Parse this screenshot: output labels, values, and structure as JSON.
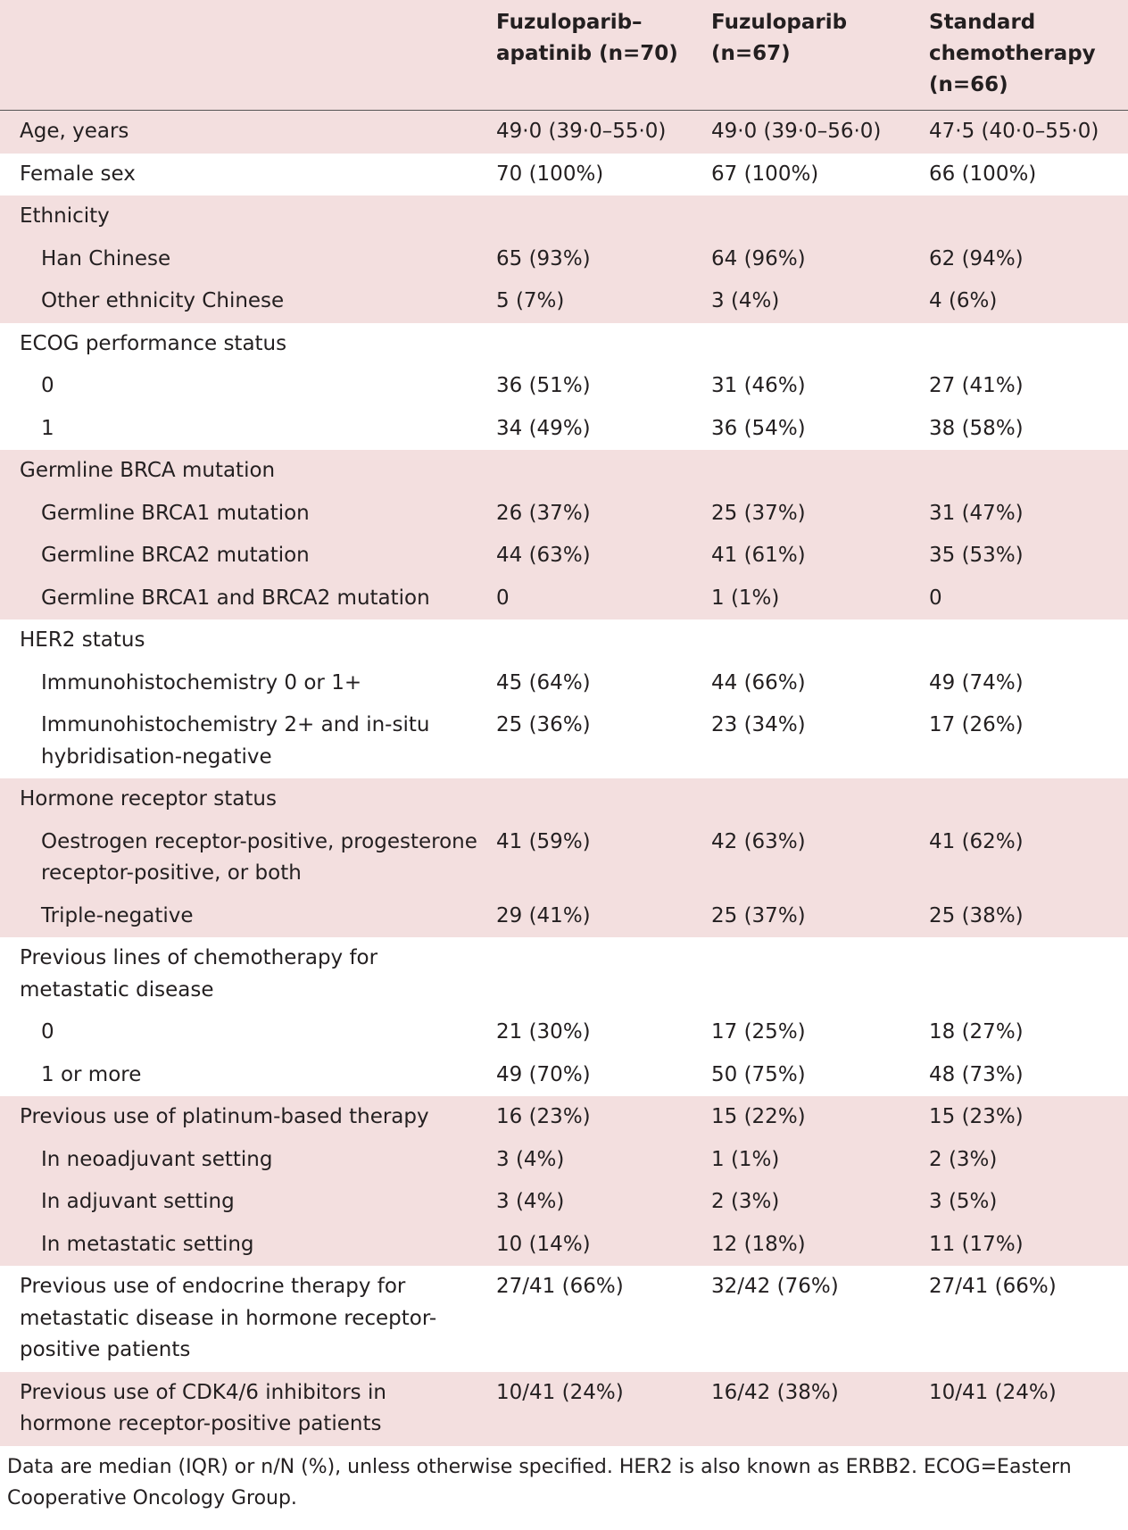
{
  "table": {
    "columns": [
      "Fuzuloparib–apatinib (n=70)",
      "Fuzuloparib (n=67)",
      "Standard chemotherapy (n=66)"
    ],
    "groups": [
      {
        "rows": [
          {
            "label": "Age, years",
            "values": [
              "49·0 (39·0–55·0)",
              "49·0 (39·0–56·0)",
              "47·5 (40·0–55·0)"
            ]
          }
        ]
      },
      {
        "rows": [
          {
            "label": "Female sex",
            "values": [
              "70 (100%)",
              "67 (100%)",
              "66 (100%)"
            ]
          }
        ]
      },
      {
        "rows": [
          {
            "label": "Ethnicity"
          },
          {
            "label": "Han Chinese",
            "indent": true,
            "values": [
              "65 (93%)",
              "64 (96%)",
              "62 (94%)"
            ]
          },
          {
            "label": "Other ethnicity Chinese",
            "indent": true,
            "values": [
              "5 (7%)",
              "3 (4%)",
              "4 (6%)"
            ]
          }
        ]
      },
      {
        "rows": [
          {
            "label": "ECOG performance status"
          },
          {
            "label": "0",
            "indent": true,
            "values": [
              "36 (51%)",
              "31 (46%)",
              "27 (41%)"
            ]
          },
          {
            "label": "1",
            "indent": true,
            "values": [
              "34 (49%)",
              "36 (54%)",
              "38 (58%)"
            ]
          }
        ]
      },
      {
        "rows": [
          {
            "label": "Germline BRCA mutation"
          },
          {
            "label": "Germline BRCA1 mutation",
            "indent": true,
            "values": [
              "26 (37%)",
              "25 (37%)",
              "31 (47%)"
            ]
          },
          {
            "label": "Germline BRCA2 mutation",
            "indent": true,
            "values": [
              "44 (63%)",
              "41 (61%)",
              "35 (53%)"
            ]
          },
          {
            "label": "Germline BRCA1 and BRCA2 mutation",
            "indent": true,
            "values": [
              "0",
              "1 (1%)",
              "0"
            ]
          }
        ]
      },
      {
        "rows": [
          {
            "label": "HER2 status"
          },
          {
            "label": "Immunohistochemistry 0 or 1+",
            "indent": true,
            "values": [
              "45 (64%)",
              "44 (66%)",
              "49 (74%)"
            ]
          },
          {
            "label": "Immunohistochemistry 2+ and in-situ hybridisation-negative",
            "indent": true,
            "values": [
              "25 (36%)",
              "23 (34%)",
              "17 (26%)"
            ]
          }
        ]
      },
      {
        "rows": [
          {
            "label": "Hormone receptor status"
          },
          {
            "label": "Oestrogen receptor-positive, progesterone receptor-positive, or both",
            "indent": true,
            "values": [
              "41 (59%)",
              "42 (63%)",
              "41 (62%)"
            ]
          },
          {
            "label": "Triple-negative",
            "indent": true,
            "values": [
              "29 (41%)",
              "25 (37%)",
              "25 (38%)"
            ]
          }
        ]
      },
      {
        "rows": [
          {
            "label": "Previous lines of chemotherapy for metastatic disease"
          },
          {
            "label": "0",
            "indent": true,
            "values": [
              "21 (30%)",
              "17 (25%)",
              "18 (27%)"
            ]
          },
          {
            "label": "1 or more",
            "indent": true,
            "values": [
              "49 (70%)",
              "50 (75%)",
              "48 (73%)"
            ]
          }
        ]
      },
      {
        "rows": [
          {
            "label": "Previous use of platinum-based therapy",
            "values": [
              "16 (23%)",
              "15 (22%)",
              "15 (23%)"
            ]
          },
          {
            "label": "In neoadjuvant setting",
            "indent": true,
            "values": [
              "3 (4%)",
              "1 (1%)",
              "2 (3%)"
            ]
          },
          {
            "label": "In adjuvant setting",
            "indent": true,
            "values": [
              "3 (4%)",
              "2 (3%)",
              "3 (5%)"
            ]
          },
          {
            "label": "In metastatic setting",
            "indent": true,
            "values": [
              "10 (14%)",
              "12 (18%)",
              "11 (17%)"
            ]
          }
        ]
      },
      {
        "rows": [
          {
            "label": "Previous use of endocrine therapy for metastatic disease in hormone receptor-positive patients",
            "values": [
              "27/41 (66%)",
              "32/42 (76%)",
              "27/41 (66%)"
            ]
          }
        ]
      },
      {
        "rows": [
          {
            "label": "Previous use of CDK4/6 inhibitors in hormone receptor-positive patients",
            "values": [
              "10/41 (24%)",
              "16/42 (38%)",
              "10/41 (24%)"
            ]
          }
        ]
      }
    ],
    "footnote": "Data are median (IQR) or n/N (%), unless otherwise specified. HER2 is also known as ERBB2. ECOG=Eastern Cooperative Oncology Group."
  }
}
